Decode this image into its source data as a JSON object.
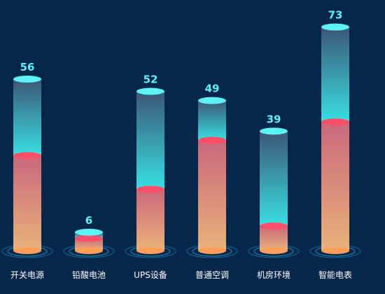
{
  "colors": {
    "background": "#06264a",
    "bar_top_cap": "#5ef2f5",
    "bar_upper_gradient_top": "#3c5676",
    "bar_upper_gradient_bottom": "#38e0e2",
    "bar_lower_gradient_top": "#c9687c",
    "bar_lower_gradient_bottom": "#e8b27a",
    "split_cap": "#ff4f68",
    "base_cap": "#ff9e5a",
    "ring": "#1c9ac4",
    "value_label": "#5ef2f5",
    "category_label": "#ffffff"
  },
  "chart_data": {
    "type": "bar",
    "style": "3d-cylinder",
    "title": "",
    "xlabel": "",
    "ylabel": "",
    "ylim": [
      0,
      80
    ],
    "grid": false,
    "legend": "none",
    "categories": [
      "开关电源",
      "铅酸电池",
      "UPS设备",
      "普通空调",
      "机房环境",
      "智能电表"
    ],
    "values": [
      56,
      6,
      52,
      49,
      39,
      73
    ],
    "secondary_values": [
      31,
      4,
      20,
      36,
      8,
      42
    ],
    "data_labels": [
      "56",
      "6",
      "52",
      "49",
      "39",
      "73"
    ]
  }
}
